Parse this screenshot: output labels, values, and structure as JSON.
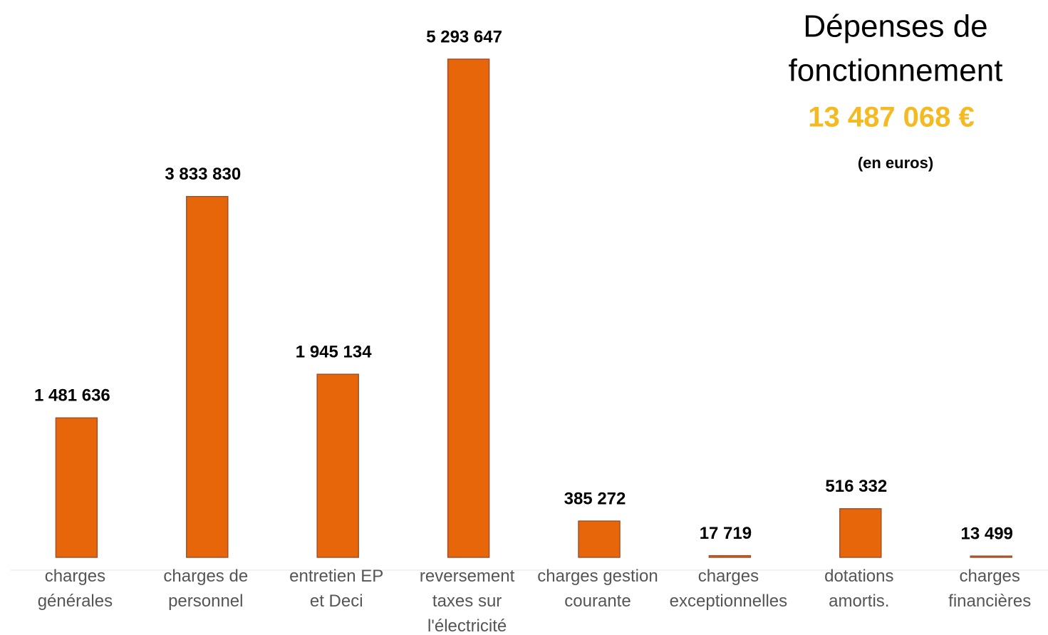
{
  "chart_data": {
    "type": "bar",
    "title": [
      "Dépenses de",
      "fonctionnement"
    ],
    "total": "13 487 068 €",
    "subtitle": "(en euros)",
    "categories": [
      "charges\ngénérales",
      "charges de\npersonnel",
      "entretien EP\net Deci",
      "reversement\ntaxes sur\nl'électricité",
      "charges gestion\ncourante",
      "charges\nexceptionnelles",
      "dotations\namortis.",
      "charges\nfinancières"
    ],
    "values": [
      1481636,
      3833830,
      1945134,
      5293647,
      385272,
      17719,
      516332,
      13499
    ],
    "value_labels": [
      "1 481 636",
      "3 833 830",
      "1 945 134",
      "5 293 647",
      "385 272",
      "17 719",
      "516 332",
      "13 499"
    ],
    "color": "#e8660a"
  }
}
